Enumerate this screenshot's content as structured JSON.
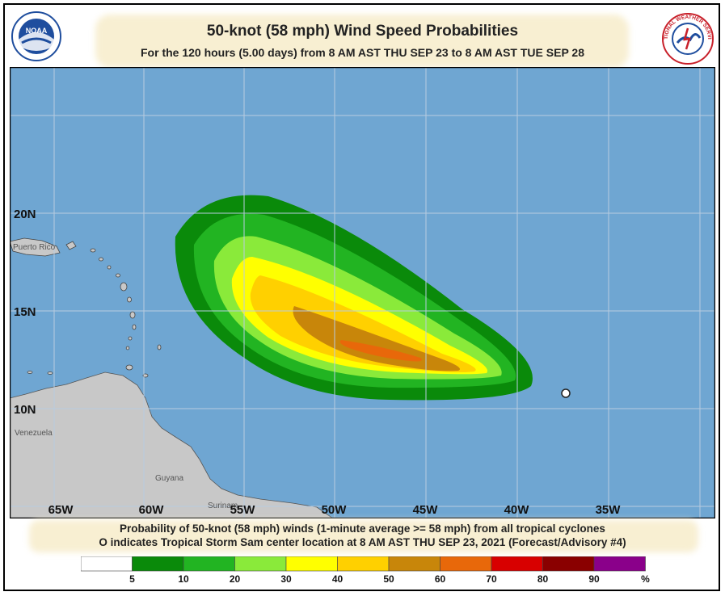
{
  "header": {
    "title": "50-knot (58 mph) Wind Speed Probabilities",
    "subtitle": "For the 120 hours (5.00 days) from 8 AM AST THU SEP 23 to 8 AM AST TUE SEP 28",
    "noaa_logo_text": "NOAA",
    "nws_logo_text": "NATIONAL WEATHER SERVICE"
  },
  "map": {
    "lon_labels": [
      "65W",
      "60W",
      "55W",
      "50W",
      "45W",
      "40W",
      "35W"
    ],
    "lat_labels": [
      "20N",
      "15N",
      "10N"
    ],
    "place_labels": [
      "Puerto Rico",
      "Venezuela",
      "Guyana",
      "Surinam"
    ],
    "ocean_color": "#6fa6d2",
    "land_color": "#c8c8c8",
    "storm_center": {
      "lon": -37.5,
      "lat": 11.2
    }
  },
  "footer": {
    "line1": "Probability of 50-knot (58 mph) winds (1-minute average >= 58 mph) from all tropical cyclones",
    "line2": "indicates Tropical Storm Sam center location at 8 AM AST THU SEP 23, 2021 (Forecast/Advisory #4)",
    "marker_symbol": "O"
  },
  "legend": {
    "labels": [
      "5",
      "10",
      "20",
      "30",
      "40",
      "50",
      "60",
      "70",
      "80",
      "90",
      "%"
    ],
    "colors": [
      "#ffffff",
      "#0a8a0a",
      "#22b422",
      "#8aea3a",
      "#ffff00",
      "#ffd000",
      "#c8860a",
      "#e8680a",
      "#d80000",
      "#8a0000",
      "#8a008a"
    ]
  }
}
